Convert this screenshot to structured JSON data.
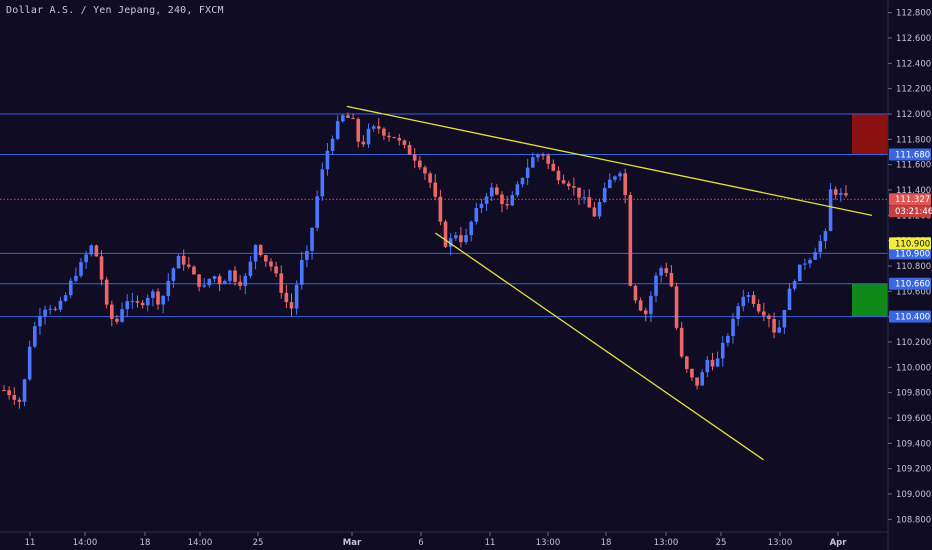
{
  "title": "Dollar A.S. / Yen Jepang, 240, FXCM",
  "colors": {
    "background": "#0f0c24",
    "bull": "#4a77ff",
    "bear": "#ee6767",
    "hline": "#3b62d9",
    "trend": "#e3e33a",
    "current_line": "#e05050",
    "target_box": "#8b1010",
    "stop_box": "#0f8a1a"
  },
  "chart_data": {
    "type": "candlestick",
    "symbol": "USD/JPY",
    "timeframe": "240",
    "source": "FXCM",
    "ylim": [
      108.7,
      112.9
    ],
    "y_ticks": [
      "112.800",
      "112.600",
      "112.400",
      "112.200",
      "112.000",
      "111.800",
      "111.600",
      "111.400",
      "111.200",
      "111.000",
      "110.800",
      "110.600",
      "110.400",
      "110.200",
      "110.000",
      "109.800",
      "109.600",
      "109.400",
      "109.200",
      "109.000",
      "108.800"
    ],
    "x_labels": [
      {
        "text": "11",
        "bold": false
      },
      {
        "text": "14:00",
        "bold": false
      },
      {
        "text": "18",
        "bold": false
      },
      {
        "text": "14:00",
        "bold": false
      },
      {
        "text": "25",
        "bold": false
      },
      {
        "text": "Mar",
        "bold": true
      },
      {
        "text": "6",
        "bold": false
      },
      {
        "text": "11",
        "bold": false
      },
      {
        "text": "13:00",
        "bold": false
      },
      {
        "text": "18",
        "bold": false
      },
      {
        "text": "13:00",
        "bold": false
      },
      {
        "text": "25",
        "bold": false
      },
      {
        "text": "13:00",
        "bold": false
      },
      {
        "text": "Apr",
        "bold": true
      }
    ],
    "horizontal_levels": [
      {
        "price": 112.0,
        "label": "112.000",
        "tagged": false
      },
      {
        "price": 111.68,
        "label": "111.680",
        "tagged": true
      },
      {
        "price": 110.9,
        "label": "110.900",
        "tagged": true
      },
      {
        "price": 110.66,
        "label": "110.660",
        "tagged": true
      },
      {
        "price": 110.4,
        "label": "110.400",
        "tagged": true
      }
    ],
    "current_price": {
      "price": 111.327,
      "label": "111.327",
      "countdown": "03:21:46"
    },
    "alert_marker": {
      "price": 110.9,
      "label": "110.900"
    },
    "target_zone": {
      "from": 111.68,
      "to": 112.0
    },
    "stop_zone": {
      "from": 110.4,
      "to": 110.66
    },
    "trendlines": [
      {
        "name": "upper",
        "points": [
          [
            0.395,
            112.06
          ],
          [
            1.0,
            111.2
          ]
        ]
      },
      {
        "name": "lower",
        "points": [
          [
            0.497,
            111.06
          ],
          [
            0.875,
            109.27
          ]
        ]
      }
    ],
    "ohlc_waypoints": [
      [
        0.0,
        109.82
      ],
      [
        0.01,
        109.78
      ],
      [
        0.02,
        109.72
      ],
      [
        0.03,
        110.2
      ],
      [
        0.04,
        110.42
      ],
      [
        0.05,
        110.5
      ],
      [
        0.06,
        110.44
      ],
      [
        0.07,
        110.55
      ],
      [
        0.08,
        110.72
      ],
      [
        0.09,
        110.82
      ],
      [
        0.1,
        110.96
      ],
      [
        0.108,
        110.86
      ],
      [
        0.115,
        110.6
      ],
      [
        0.12,
        110.4
      ],
      [
        0.13,
        110.36
      ],
      [
        0.14,
        110.55
      ],
      [
        0.15,
        110.48
      ],
      [
        0.16,
        110.52
      ],
      [
        0.17,
        110.6
      ],
      [
        0.18,
        110.5
      ],
      [
        0.19,
        110.7
      ],
      [
        0.2,
        110.86
      ],
      [
        0.21,
        110.82
      ],
      [
        0.22,
        110.7
      ],
      [
        0.23,
        110.62
      ],
      [
        0.24,
        110.74
      ],
      [
        0.25,
        110.66
      ],
      [
        0.26,
        110.76
      ],
      [
        0.27,
        110.66
      ],
      [
        0.28,
        110.72
      ],
      [
        0.29,
        110.98
      ],
      [
        0.3,
        110.86
      ],
      [
        0.31,
        110.78
      ],
      [
        0.32,
        110.6
      ],
      [
        0.33,
        110.44
      ],
      [
        0.335,
        110.55
      ],
      [
        0.34,
        110.8
      ],
      [
        0.35,
        110.9
      ],
      [
        0.36,
        111.32
      ],
      [
        0.37,
        111.66
      ],
      [
        0.38,
        111.86
      ],
      [
        0.39,
        111.98
      ],
      [
        0.4,
        111.96
      ],
      [
        0.405,
        111.9
      ],
      [
        0.41,
        111.72
      ],
      [
        0.42,
        111.86
      ],
      [
        0.43,
        111.9
      ],
      [
        0.44,
        111.84
      ],
      [
        0.45,
        111.82
      ],
      [
        0.46,
        111.74
      ],
      [
        0.47,
        111.68
      ],
      [
        0.48,
        111.6
      ],
      [
        0.49,
        111.48
      ],
      [
        0.5,
        111.25
      ],
      [
        0.505,
        111.02
      ],
      [
        0.51,
        110.96
      ],
      [
        0.52,
        111.06
      ],
      [
        0.53,
        110.98
      ],
      [
        0.54,
        111.18
      ],
      [
        0.55,
        111.3
      ],
      [
        0.56,
        111.42
      ],
      [
        0.57,
        111.34
      ],
      [
        0.58,
        111.26
      ],
      [
        0.59,
        111.4
      ],
      [
        0.6,
        111.55
      ],
      [
        0.61,
        111.66
      ],
      [
        0.62,
        111.7
      ],
      [
        0.63,
        111.56
      ],
      [
        0.64,
        111.5
      ],
      [
        0.65,
        111.46
      ],
      [
        0.66,
        111.38
      ],
      [
        0.67,
        111.3
      ],
      [
        0.68,
        111.2
      ],
      [
        0.69,
        111.36
      ],
      [
        0.7,
        111.5
      ],
      [
        0.71,
        111.56
      ],
      [
        0.715,
        111.46
      ],
      [
        0.72,
        110.7
      ],
      [
        0.73,
        110.5
      ],
      [
        0.74,
        110.42
      ],
      [
        0.75,
        110.7
      ],
      [
        0.76,
        110.82
      ],
      [
        0.77,
        110.62
      ],
      [
        0.775,
        110.3
      ],
      [
        0.78,
        110.08
      ],
      [
        0.79,
        109.92
      ],
      [
        0.8,
        109.86
      ],
      [
        0.81,
        110.06
      ],
      [
        0.82,
        110.02
      ],
      [
        0.83,
        110.2
      ],
      [
        0.84,
        110.36
      ],
      [
        0.85,
        110.58
      ],
      [
        0.86,
        110.56
      ],
      [
        0.87,
        110.46
      ],
      [
        0.88,
        110.42
      ],
      [
        0.89,
        110.24
      ],
      [
        0.9,
        110.5
      ],
      [
        0.91,
        110.7
      ],
      [
        0.92,
        110.82
      ],
      [
        0.93,
        110.88
      ],
      [
        0.94,
        111.0
      ],
      [
        0.945,
        110.92
      ],
      [
        0.95,
        111.4
      ],
      [
        0.96,
        111.38
      ],
      [
        0.97,
        111.33
      ]
    ]
  }
}
